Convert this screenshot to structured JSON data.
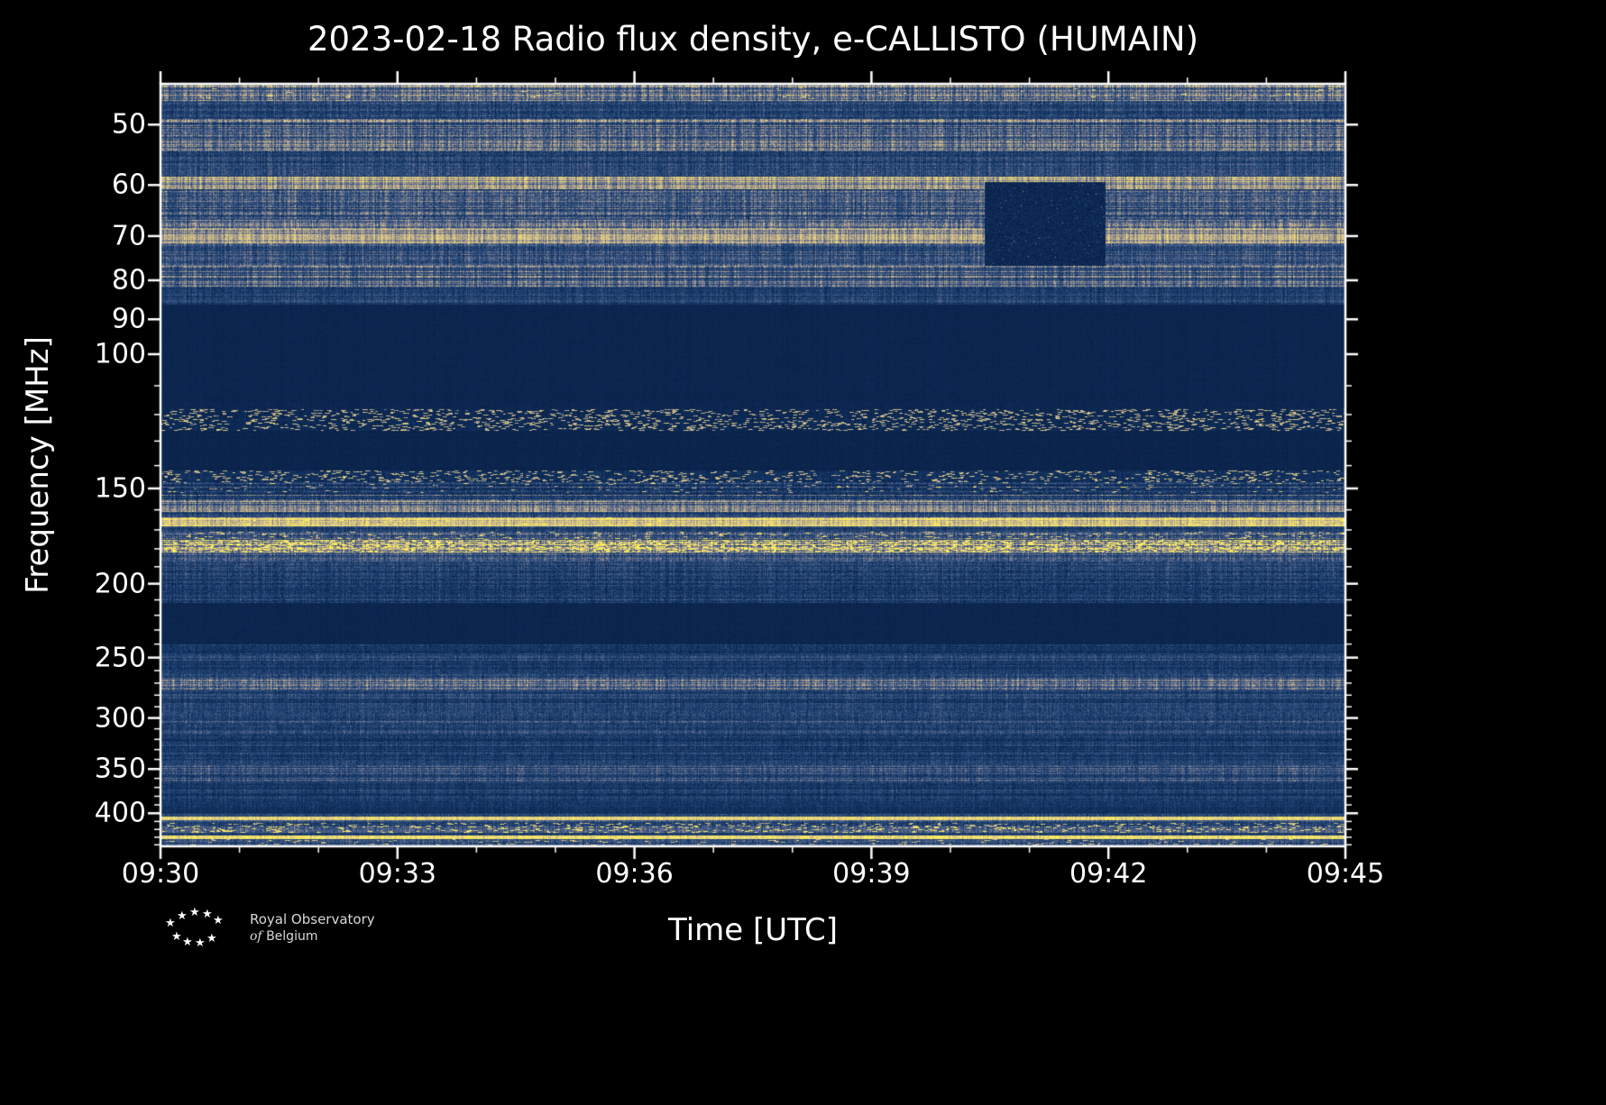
{
  "chart_data": {
    "type": "heatmap",
    "title": "2023-02-18 Radio flux density, e-CALLISTO (HUMAIN)",
    "xlabel": "Time [UTC]",
    "ylabel": "Frequency [MHz]",
    "x_ticks": [
      "09:30",
      "09:33",
      "09:36",
      "09:39",
      "09:42",
      "09:45"
    ],
    "x_minor_count": 15,
    "x_minor_every": 3,
    "y_ticks": [
      50,
      60,
      70,
      80,
      90,
      100,
      150,
      200,
      250,
      300,
      350,
      400
    ],
    "y_minor_start": 50,
    "y_minor_step": 10,
    "y_minor_end": 440,
    "y_scale": "log",
    "freq_range_mhz": [
      44.2,
      442
    ],
    "time_range_utc": [
      "09:30",
      "09:45"
    ],
    "colormap": [
      [
        0.0,
        "#071a3c"
      ],
      [
        0.2,
        "#10305e"
      ],
      [
        0.4,
        "#31517f"
      ],
      [
        0.55,
        "#6d7390"
      ],
      [
        0.68,
        "#b3a385"
      ],
      [
        0.82,
        "#dcc98f"
      ],
      [
        1.0,
        "#ffef58"
      ]
    ],
    "bands": [
      {
        "f0": 44.2,
        "f1": 46.5,
        "base": 0.52,
        "row": 0.3,
        "col": 0.25,
        "px": 0.14,
        "sp": 0.003,
        "spg": 0.5
      },
      {
        "f0": 46.5,
        "f1": 49.0,
        "base": 0.3,
        "row": 0.3,
        "col": 0.25,
        "px": 0.12
      },
      {
        "f0": 49.0,
        "f1": 54.0,
        "base": 0.46,
        "row": 0.45,
        "col": 0.25,
        "px": 0.14
      },
      {
        "f0": 54.0,
        "f1": 58.5,
        "base": 0.32,
        "row": 0.3,
        "col": 0.25,
        "px": 0.12
      },
      {
        "f0": 58.5,
        "f1": 60.8,
        "base": 0.66,
        "row": 0.25,
        "col": 0.2,
        "px": 0.1
      },
      {
        "f0": 60.8,
        "f1": 66.5,
        "base": 0.42,
        "row": 0.4,
        "col": 0.25,
        "px": 0.14
      },
      {
        "f0": 66.5,
        "f1": 68.5,
        "base": 0.52,
        "row": 0.3,
        "col": 0.22,
        "px": 0.12
      },
      {
        "f0": 68.5,
        "f1": 71.5,
        "base": 0.68,
        "row": 0.2,
        "col": 0.18,
        "px": 0.1
      },
      {
        "f0": 71.5,
        "f1": 76.5,
        "base": 0.38,
        "row": 0.35,
        "col": 0.25,
        "px": 0.12
      },
      {
        "f0": 76.5,
        "f1": 81.5,
        "base": 0.46,
        "row": 0.4,
        "col": 0.25,
        "px": 0.12
      },
      {
        "f0": 81.5,
        "f1": 86.0,
        "base": 0.28,
        "row": 0.3,
        "col": 0.22,
        "px": 0.1
      },
      {
        "f0": 86.0,
        "f1": 116.0,
        "base": 0.11,
        "row": 0.08,
        "col": 0.05,
        "px": 0.03
      },
      {
        "f0": 116.0,
        "f1": 118.0,
        "base": 0.12,
        "row": 0.1,
        "col": 0.08,
        "px": 0.05
      },
      {
        "f0": 118.0,
        "f1": 126.0,
        "base": 0.14,
        "row": 0.15,
        "col": 0.15,
        "px": 0.08,
        "sp": 0.055,
        "spg": 0.75
      },
      {
        "f0": 126.0,
        "f1": 142.0,
        "base": 0.1,
        "row": 0.08,
        "col": 0.05,
        "px": 0.035
      },
      {
        "f0": 142.0,
        "f1": 147.0,
        "base": 0.18,
        "row": 0.2,
        "col": 0.18,
        "px": 0.08,
        "sp": 0.045,
        "spg": 0.7
      },
      {
        "f0": 147.0,
        "f1": 152.0,
        "base": 0.3,
        "row": 0.5,
        "col": 0.22,
        "px": 0.14,
        "sp": 0.01,
        "spg": 0.6
      },
      {
        "f0": 152.0,
        "f1": 156.0,
        "base": 0.38,
        "row": 0.5,
        "col": 0.22,
        "px": 0.14
      },
      {
        "f0": 156.0,
        "f1": 161.0,
        "base": 0.55,
        "row": 0.35,
        "col": 0.2,
        "px": 0.12
      },
      {
        "f0": 161.0,
        "f1": 163.5,
        "base": 0.33,
        "row": 0.3,
        "col": 0.22,
        "px": 0.12
      },
      {
        "f0": 163.5,
        "f1": 168.0,
        "base": 0.84,
        "row": 0.18,
        "col": 0.12,
        "px": 0.1,
        "sp": 0.01,
        "spg": 0.4
      },
      {
        "f0": 168.0,
        "f1": 171.0,
        "base": 0.3,
        "row": 0.3,
        "col": 0.22,
        "px": 0.12
      },
      {
        "f0": 171.0,
        "f1": 175.0,
        "base": 0.42,
        "row": 0.4,
        "col": 0.22,
        "px": 0.14,
        "sp": 0.02,
        "spg": 0.55
      },
      {
        "f0": 175.0,
        "f1": 182.0,
        "base": 0.6,
        "row": 0.3,
        "col": 0.2,
        "px": 0.16,
        "sp": 0.09,
        "spg": 0.6
      },
      {
        "f0": 182.0,
        "f1": 187.0,
        "base": 0.38,
        "row": 0.35,
        "col": 0.22,
        "px": 0.13
      },
      {
        "f0": 187.0,
        "f1": 212.0,
        "base": 0.3,
        "row": 0.3,
        "col": 0.22,
        "px": 0.12
      },
      {
        "f0": 212.0,
        "f1": 240.0,
        "base": 0.11,
        "row": 0.08,
        "col": 0.05,
        "px": 0.03
      },
      {
        "f0": 240.0,
        "f1": 247.0,
        "base": 0.24,
        "row": 0.3,
        "col": 0.2,
        "px": 0.1
      },
      {
        "f0": 247.0,
        "f1": 252.0,
        "base": 0.36,
        "row": 0.3,
        "col": 0.2,
        "px": 0.11
      },
      {
        "f0": 252.0,
        "f1": 263.0,
        "base": 0.27,
        "row": 0.3,
        "col": 0.2,
        "px": 0.1
      },
      {
        "f0": 263.0,
        "f1": 276.0,
        "base": 0.44,
        "row": 0.4,
        "col": 0.22,
        "px": 0.13
      },
      {
        "f0": 276.0,
        "f1": 295.0,
        "base": 0.3,
        "row": 0.3,
        "col": 0.2,
        "px": 0.11
      },
      {
        "f0": 295.0,
        "f1": 306.0,
        "base": 0.38,
        "row": 0.35,
        "col": 0.2,
        "px": 0.12
      },
      {
        "f0": 306.0,
        "f1": 316.0,
        "base": 0.33,
        "row": 0.3,
        "col": 0.2,
        "px": 0.11
      },
      {
        "f0": 316.0,
        "f1": 333.0,
        "base": 0.27,
        "row": 0.3,
        "col": 0.2,
        "px": 0.1
      },
      {
        "f0": 333.0,
        "f1": 346.0,
        "base": 0.3,
        "row": 0.3,
        "col": 0.2,
        "px": 0.11
      },
      {
        "f0": 346.0,
        "f1": 363.0,
        "base": 0.37,
        "row": 0.35,
        "col": 0.2,
        "px": 0.12
      },
      {
        "f0": 363.0,
        "f1": 386.0,
        "base": 0.27,
        "row": 0.3,
        "col": 0.2,
        "px": 0.1
      },
      {
        "f0": 386.0,
        "f1": 401.0,
        "base": 0.21,
        "row": 0.25,
        "col": 0.18,
        "px": 0.08
      },
      {
        "f0": 401.0,
        "f1": 403.5,
        "base": 0.3,
        "row": 0.25,
        "col": 0.18,
        "px": 0.1
      },
      {
        "f0": 403.5,
        "f1": 408.0,
        "base": 0.93,
        "row": 0.12,
        "col": 0.08,
        "px": 0.08
      },
      {
        "f0": 408.0,
        "f1": 412.0,
        "base": 0.34,
        "row": 0.3,
        "col": 0.2,
        "px": 0.11
      },
      {
        "f0": 412.0,
        "f1": 424.0,
        "base": 0.37,
        "row": 0.35,
        "col": 0.2,
        "px": 0.13,
        "sp": 0.035,
        "spg": 0.6
      },
      {
        "f0": 424.0,
        "f1": 427.5,
        "base": 0.29,
        "row": 0.3,
        "col": 0.2,
        "px": 0.1
      },
      {
        "f0": 427.5,
        "f1": 433.0,
        "base": 0.88,
        "row": 0.15,
        "col": 0.1,
        "px": 0.09,
        "sp": 0.01,
        "spg": 0.3
      },
      {
        "f0": 433.0,
        "f1": 442.0,
        "base": 0.34,
        "row": 0.3,
        "col": 0.2,
        "px": 0.12,
        "sp": 0.015,
        "spg": 0.5
      }
    ],
    "patch": {
      "t0": 0.695,
      "t1": 0.797,
      "f0": 59.5,
      "f1": 76.5,
      "base": 0.13,
      "px": 0.1,
      "sp": 0.02,
      "spg": 0.45
    }
  },
  "logo": {
    "line1": "Royal Observatory",
    "line2_italic": "of",
    "line2_rest": "Belgium"
  }
}
